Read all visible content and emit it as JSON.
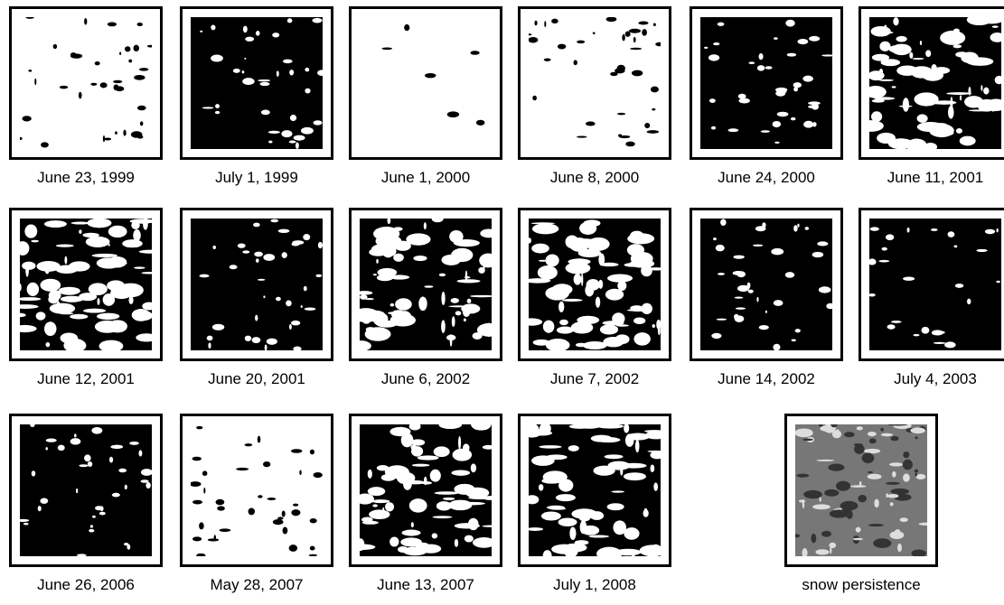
{
  "panels": [
    {
      "label": "June 23, 1999"
    },
    {
      "label": "July 1, 1999"
    },
    {
      "label": "June 1, 2000"
    },
    {
      "label": "June 8, 2000"
    },
    {
      "label": "June 24, 2000"
    },
    {
      "label": "June 11, 2001"
    },
    {
      "label": "June 12, 2001"
    },
    {
      "label": "June 20, 2001"
    },
    {
      "label": "June 6, 2002"
    },
    {
      "label": "June 7, 2002"
    },
    {
      "label": "June 14, 2002"
    },
    {
      "label": "July 4, 2003"
    },
    {
      "label": "June 26, 2006"
    },
    {
      "label": "May 28, 2007"
    },
    {
      "label": "June 13, 2007"
    },
    {
      "label": "July 1, 2008"
    },
    {
      "label": "snow persistence"
    }
  ]
}
